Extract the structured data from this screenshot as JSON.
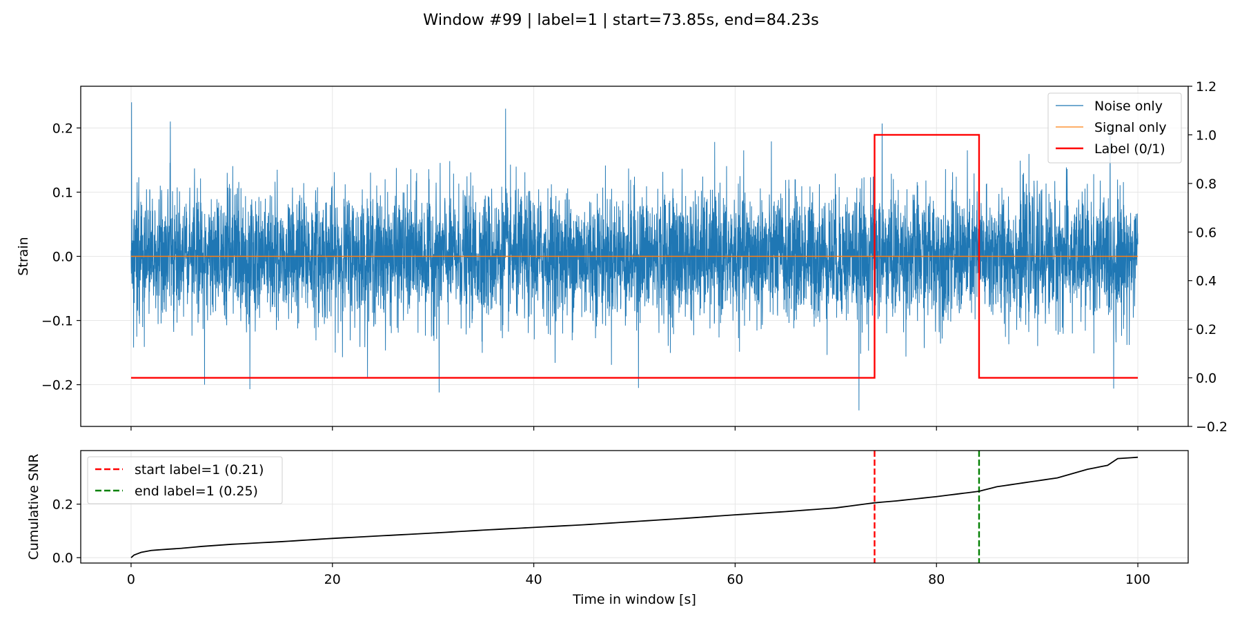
{
  "chart_data": [
    {
      "type": "line",
      "title": "Window #99 | label=1 | start=73.85s, end=84.23s",
      "xlabel": "",
      "ylabel": "Strain",
      "ylabel_right": "",
      "xlim": [
        -5,
        105
      ],
      "ylim": [
        -0.265,
        0.265
      ],
      "ylim_right": [
        -0.2,
        1.2
      ],
      "x_ticks": [
        0,
        20,
        40,
        60,
        80,
        100
      ],
      "y_ticks": [
        -0.2,
        -0.1,
        0.0,
        0.1,
        0.2
      ],
      "y_tick_labels": [
        "−0.2",
        "−0.1",
        "0.0",
        "0.1",
        "0.2"
      ],
      "y_ticks_right": [
        -0.2,
        0.0,
        0.2,
        0.4,
        0.6,
        0.8,
        1.0,
        1.2
      ],
      "y_tick_labels_right": [
        "−0.2",
        "0.0",
        "0.2",
        "0.4",
        "0.6",
        "0.8",
        "1.0",
        "1.2"
      ],
      "grid": true,
      "legend_position": "top-right",
      "series": [
        {
          "name": "Noise only",
          "color": "#1f77b4",
          "x_range": [
            0,
            100
          ],
          "typical_amplitude": 0.16,
          "peaks": [
            {
              "x": 0.05,
              "y": 0.24
            },
            {
              "x": 3.9,
              "y": 0.21
            },
            {
              "x": 7.3,
              "y": -0.2
            },
            {
              "x": 11.8,
              "y": -0.207
            },
            {
              "x": 30.6,
              "y": -0.212
            },
            {
              "x": 37.2,
              "y": 0.23
            },
            {
              "x": 50.4,
              "y": -0.205
            },
            {
              "x": 72.3,
              "y": -0.24
            },
            {
              "x": 74.6,
              "y": 0.207
            },
            {
              "x": 97.6,
              "y": -0.206
            }
          ]
        },
        {
          "name": "Signal only",
          "color": "#ff7f0e",
          "x": [
            0,
            100
          ],
          "y": [
            0,
            0
          ]
        },
        {
          "name": "Label (0/1)",
          "color": "#ff0000",
          "axis": "right",
          "x": [
            0,
            73.85,
            73.85,
            84.23,
            84.23,
            100
          ],
          "y": [
            0,
            0,
            1,
            1,
            0,
            0
          ]
        }
      ]
    },
    {
      "type": "line",
      "title": "",
      "xlabel": "Time in window [s]",
      "ylabel": "Cumulative SNR",
      "xlim": [
        -5,
        105
      ],
      "ylim": [
        -0.02,
        0.4
      ],
      "x_ticks": [
        0,
        20,
        40,
        60,
        80,
        100
      ],
      "x_tick_labels": [
        "0",
        "20",
        "40",
        "60",
        "80",
        "100"
      ],
      "y_ticks": [
        0.0,
        0.2
      ],
      "y_tick_labels": [
        "0.0",
        "0.2"
      ],
      "grid": true,
      "legend_position": "top-left",
      "series": [
        {
          "name": "",
          "color": "#000000",
          "x": [
            0,
            0.3,
            1,
            2,
            3,
            5,
            7,
            10,
            15,
            20,
            25,
            30,
            35,
            40,
            45,
            50,
            55,
            60,
            65,
            70,
            73.85,
            76,
            80,
            84.23,
            86,
            88,
            90,
            92,
            95,
            97,
            98,
            100
          ],
          "y": [
            0.0,
            0.01,
            0.02,
            0.027,
            0.03,
            0.035,
            0.042,
            0.05,
            0.06,
            0.072,
            0.082,
            0.092,
            0.103,
            0.113,
            0.123,
            0.135,
            0.147,
            0.16,
            0.172,
            0.186,
            0.205,
            0.212,
            0.228,
            0.248,
            0.265,
            0.276,
            0.287,
            0.298,
            0.33,
            0.345,
            0.37,
            0.375
          ]
        }
      ],
      "markers": [
        {
          "name": "start label=1 (0.21)",
          "x": 73.85,
          "color": "#ff0000",
          "style": "dashed"
        },
        {
          "name": "end label=1 (0.25)",
          "x": 84.23,
          "color": "#008000",
          "style": "dashed"
        }
      ]
    }
  ]
}
